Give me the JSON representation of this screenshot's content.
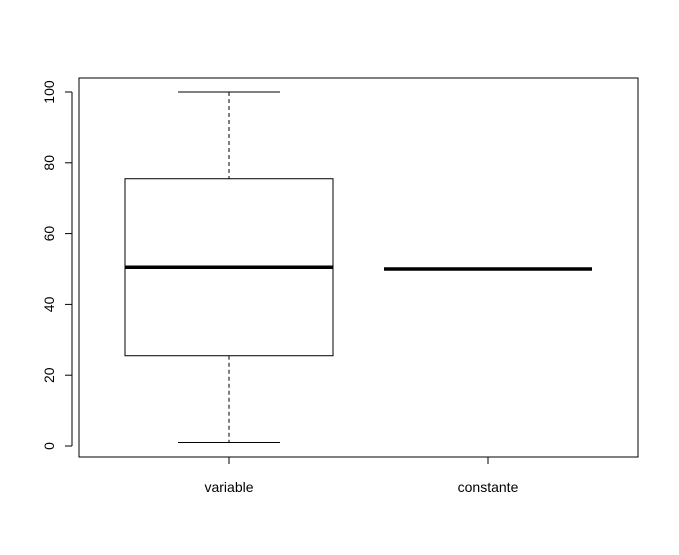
{
  "chart_data": {
    "type": "boxplot",
    "title": "",
    "xlabel": "",
    "ylabel": "",
    "ylim": [
      -3,
      104
    ],
    "yticks": [
      0,
      20,
      40,
      60,
      80,
      100
    ],
    "ytick_labels": [
      "0",
      "20",
      "40",
      "60",
      "80",
      "100"
    ],
    "categories": [
      "variable",
      "constante"
    ],
    "boxes": [
      {
        "category": "variable",
        "min": 1,
        "q1": 25.5,
        "median": 50.5,
        "q3": 75.5,
        "max": 100
      },
      {
        "category": "constante",
        "min": 50,
        "q1": 50,
        "median": 50,
        "q3": 50,
        "max": 50
      }
    ],
    "grid": false,
    "legend": "none"
  }
}
